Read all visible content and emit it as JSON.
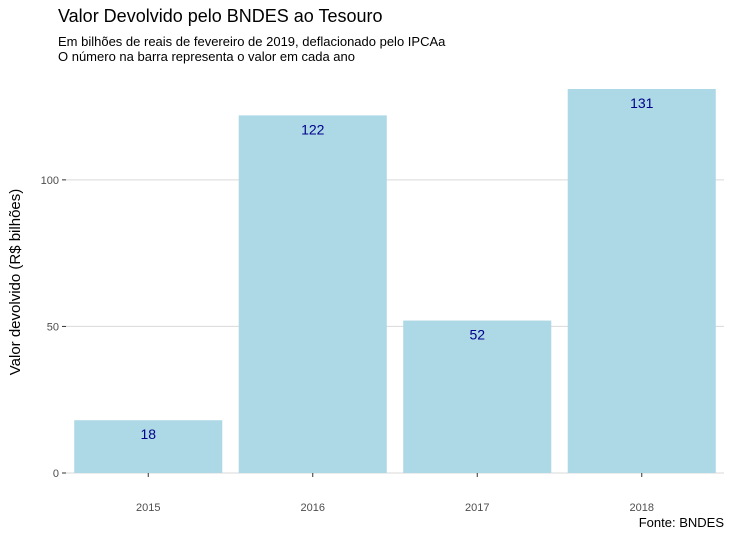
{
  "chart_data": {
    "type": "bar",
    "title": "Valor Devolvido pelo BNDES ao Tesouro",
    "subtitle_lines": [
      "Em bilhões de reais de fevereiro de 2019, deflacionado pelo IPCAa",
      "O número na barra representa o valor em cada ano"
    ],
    "xlabel": "",
    "ylabel": "Valor devolvido (R$ bilhões)",
    "categories": [
      "2015",
      "2016",
      "2017",
      "2018"
    ],
    "values": [
      18,
      122,
      52,
      131
    ],
    "ylim": [
      0,
      131
    ],
    "yticks": [
      0,
      50,
      100
    ],
    "grid": true,
    "caption": "Fonte: BNDES"
  },
  "colors": {
    "bar": "#add8e6",
    "label": "#00008b",
    "grid": "#d9d9d9",
    "tick_text": "#4d4d4d"
  }
}
